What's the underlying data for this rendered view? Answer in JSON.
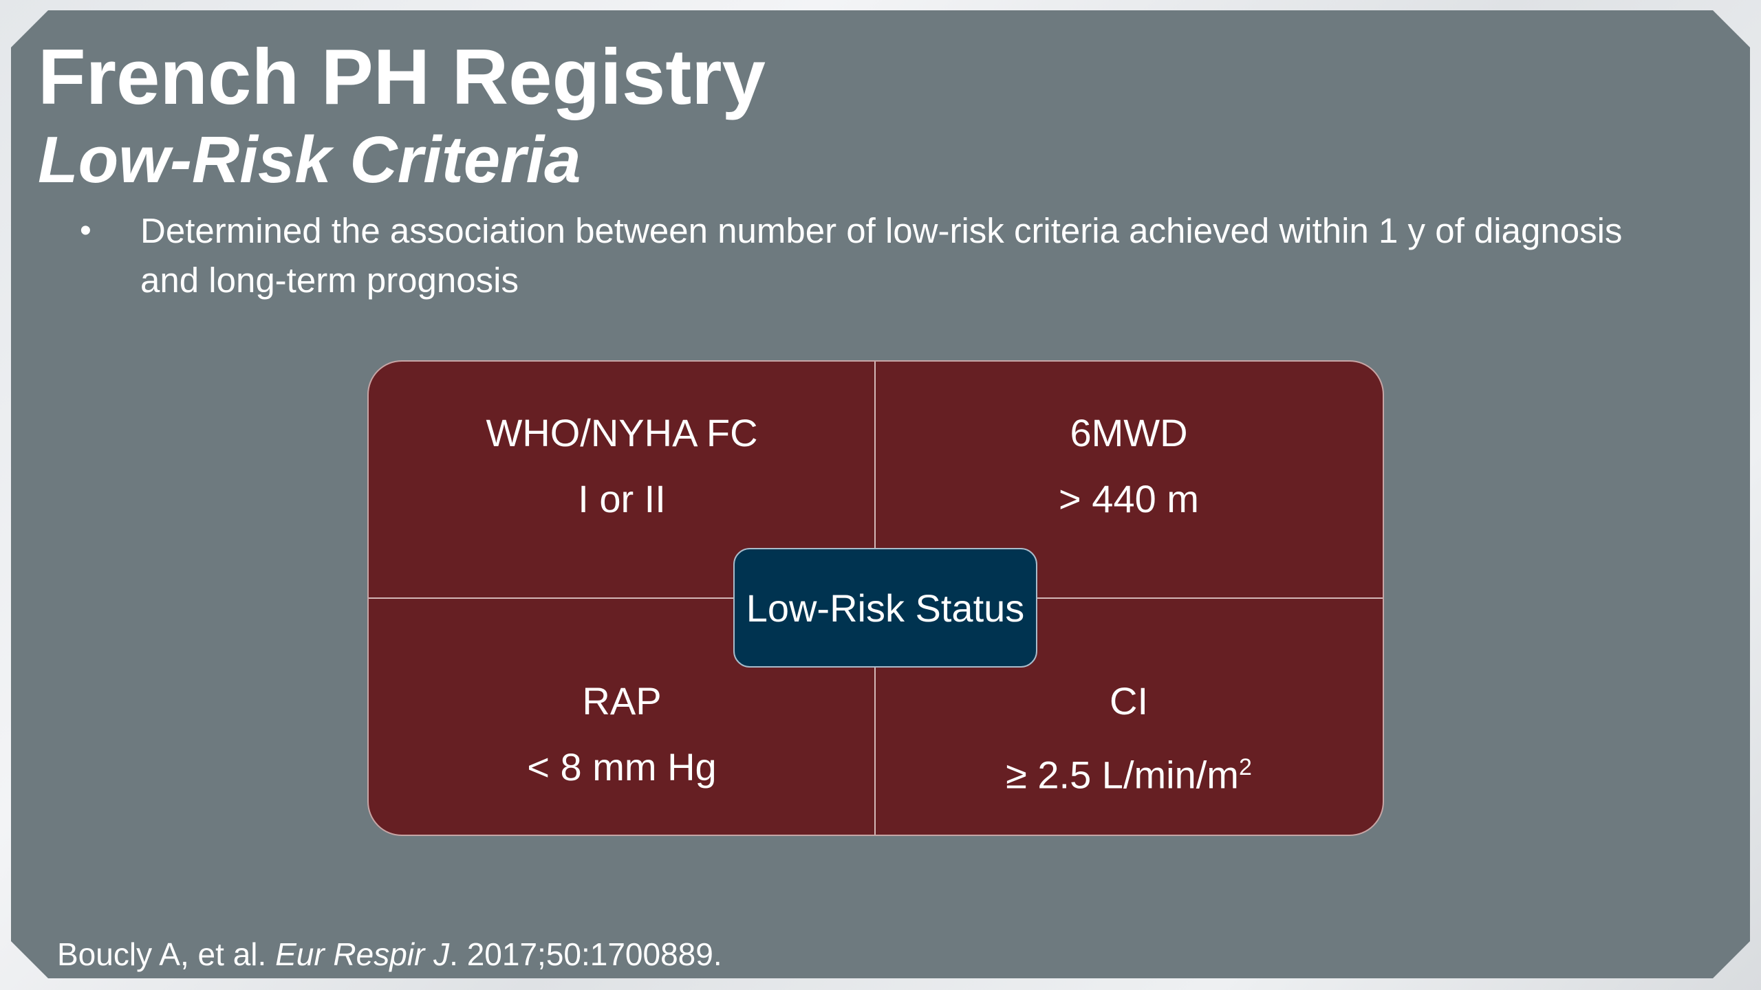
{
  "title": "French PH Registry",
  "subtitle": "Low-Risk Criteria",
  "bullets": [
    {
      "marker": "•",
      "text": "Determined the association between number of low-risk criteria achieved within 1 y of diagnosis and long-term prognosis"
    }
  ],
  "criteria": {
    "top_left": {
      "name": "WHO/NYHA FC",
      "value": "I or II"
    },
    "top_right": {
      "name": "6MWD",
      "value": "> 440 m"
    },
    "bottom_left": {
      "name": "RAP",
      "value": "< 8 mm Hg"
    },
    "bottom_right": {
      "name": "CI",
      "value": "≥ 2.5 L/min/m",
      "superscript": "2"
    }
  },
  "center_label": "Low-Risk Status",
  "citation": {
    "authors": "Boucly A, et al.",
    "journal": "Eur Respir J",
    "details": ". 2017;50:1700889."
  },
  "colors": {
    "slide_background": "#6e7a7f",
    "quadrant_fill": "#661f23",
    "center_fill": "#003350",
    "text": "#ffffff"
  }
}
